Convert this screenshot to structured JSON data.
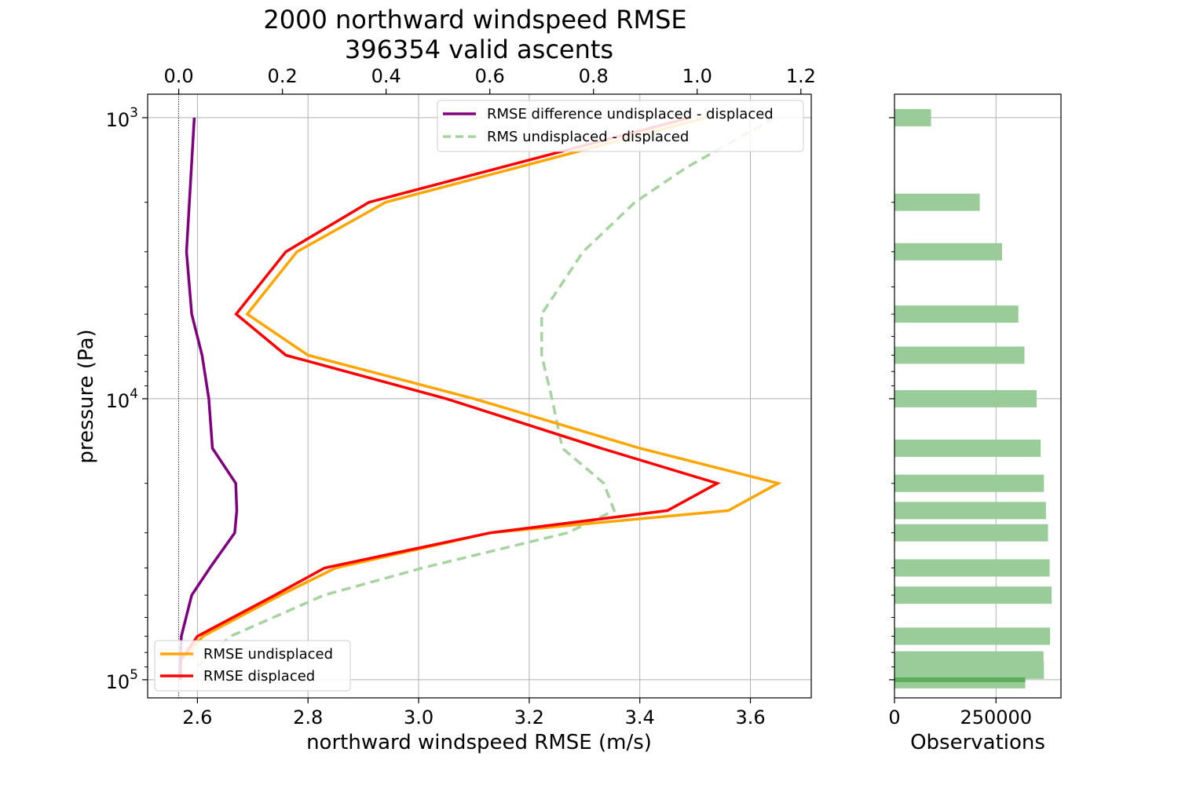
{
  "chart_data": [
    {
      "type": "line",
      "title": "2000 northward windspeed RMSE",
      "subtitle": "396354 valid ascents",
      "xlabel": "northward windspeed RMSE (m/s)",
      "ylabel": "pressure (Pa)",
      "xlim": [
        2.51,
        3.71
      ],
      "xticks": [
        "2.6",
        "2.8",
        "3.0",
        "3.2",
        "3.4",
        "3.6"
      ],
      "xticks_values": [
        2.6,
        2.8,
        3.0,
        3.2,
        3.4,
        3.6
      ],
      "top_xlim": [
        -0.06,
        1.22
      ],
      "top_xticks": [
        "0.0",
        "0.2",
        "0.4",
        "0.6",
        "0.8",
        "1.0",
        "1.2"
      ],
      "top_xticks_values": [
        0.0,
        0.2,
        0.4,
        0.6,
        0.8,
        1.0,
        1.2
      ],
      "ylim": [
        116000,
        825
      ],
      "y_scale": "log",
      "y_inverted": true,
      "yticks_values": [
        1000,
        10000,
        100000
      ],
      "yticks": [
        {
          "base": "10",
          "exp": "3"
        },
        {
          "base": "10",
          "exp": "4"
        },
        {
          "base": "10",
          "exp": "5"
        }
      ],
      "grid": true,
      "series": [
        {
          "name": "RMSE undisplaced",
          "axis": "bottom",
          "color": "#ffa500",
          "dash": "solid",
          "pressure": [
            1000,
            2000,
            3000,
            5000,
            7000,
            10000,
            15000,
            20000,
            25000,
            30000,
            40000,
            50000,
            70000,
            85000,
            92500,
            100000
          ],
          "values": [
            3.52,
            2.94,
            2.78,
            2.69,
            2.8,
            3.1,
            3.4,
            3.65,
            3.56,
            3.13,
            2.85,
            2.75,
            2.61,
            2.57,
            2.57,
            2.57
          ]
        },
        {
          "name": "RMSE displaced",
          "axis": "bottom",
          "color": "#ff0000",
          "dash": "solid",
          "pressure": [
            1000,
            2000,
            3000,
            5000,
            7000,
            10000,
            15000,
            20000,
            25000,
            30000,
            40000,
            50000,
            70000,
            85000,
            92500,
            100000
          ],
          "values": [
            3.49,
            2.91,
            2.76,
            2.67,
            2.76,
            3.05,
            3.33,
            3.54,
            3.45,
            3.13,
            2.83,
            2.74,
            2.6,
            2.57,
            2.57,
            2.57
          ]
        },
        {
          "name": "RMSE difference undisplaced - displaced",
          "axis": "top",
          "color": "#800080",
          "dash": "solid",
          "pressure": [
            1000,
            3000,
            5000,
            7000,
            10000,
            15000,
            20000,
            25000,
            30000,
            40000,
            50000,
            70000,
            85000,
            92500,
            100000
          ],
          "values": [
            0.03,
            0.015,
            0.025,
            0.045,
            0.058,
            0.065,
            0.11,
            0.112,
            0.108,
            0.06,
            0.025,
            0.005,
            0.003,
            0.002,
            0.002
          ]
        },
        {
          "name": "RMS undisplaced - displaced",
          "axis": "top",
          "color": "#a6d3a0",
          "dash": "dashed",
          "pressure": [
            1000,
            1500,
            2000,
            3000,
            5000,
            7000,
            10000,
            15000,
            20000,
            25000,
            30000,
            40000,
            50000,
            70000,
            85000,
            92500
          ],
          "values": [
            1.15,
            0.98,
            0.88,
            0.78,
            0.7,
            0.7,
            0.72,
            0.74,
            0.82,
            0.84,
            0.75,
            0.47,
            0.28,
            0.1,
            0.05,
            0.03
          ]
        }
      ],
      "legend": [
        {
          "position": "top-right",
          "entries": [
            "RMSE difference undisplaced - displaced",
            "RMS undisplaced - displaced"
          ]
        },
        {
          "position": "bottom-left",
          "entries": [
            "RMSE undisplaced",
            "RMSE displaced"
          ]
        }
      ],
      "colors": {
        "mean_line": "#000000"
      }
    },
    {
      "type": "bar",
      "orientation": "horizontal",
      "xlabel": "Observations",
      "xlim": [
        0,
        410000
      ],
      "xticks": [
        "0",
        "250000"
      ],
      "xticks_values": [
        0,
        250000
      ],
      "y_scale": "log",
      "bar_color": "#99cc99",
      "bar_dark_color": "#5aad5a",
      "pressure": [
        1000,
        2000,
        3000,
        5000,
        7000,
        10000,
        15000,
        20000,
        25000,
        30000,
        40000,
        50000,
        70000,
        85000,
        92500,
        100000
      ],
      "values": [
        90000,
        210000,
        265000,
        305000,
        320000,
        350000,
        360000,
        368000,
        373000,
        378000,
        382000,
        387000,
        383000,
        367000,
        368000,
        322000
      ]
    }
  ]
}
